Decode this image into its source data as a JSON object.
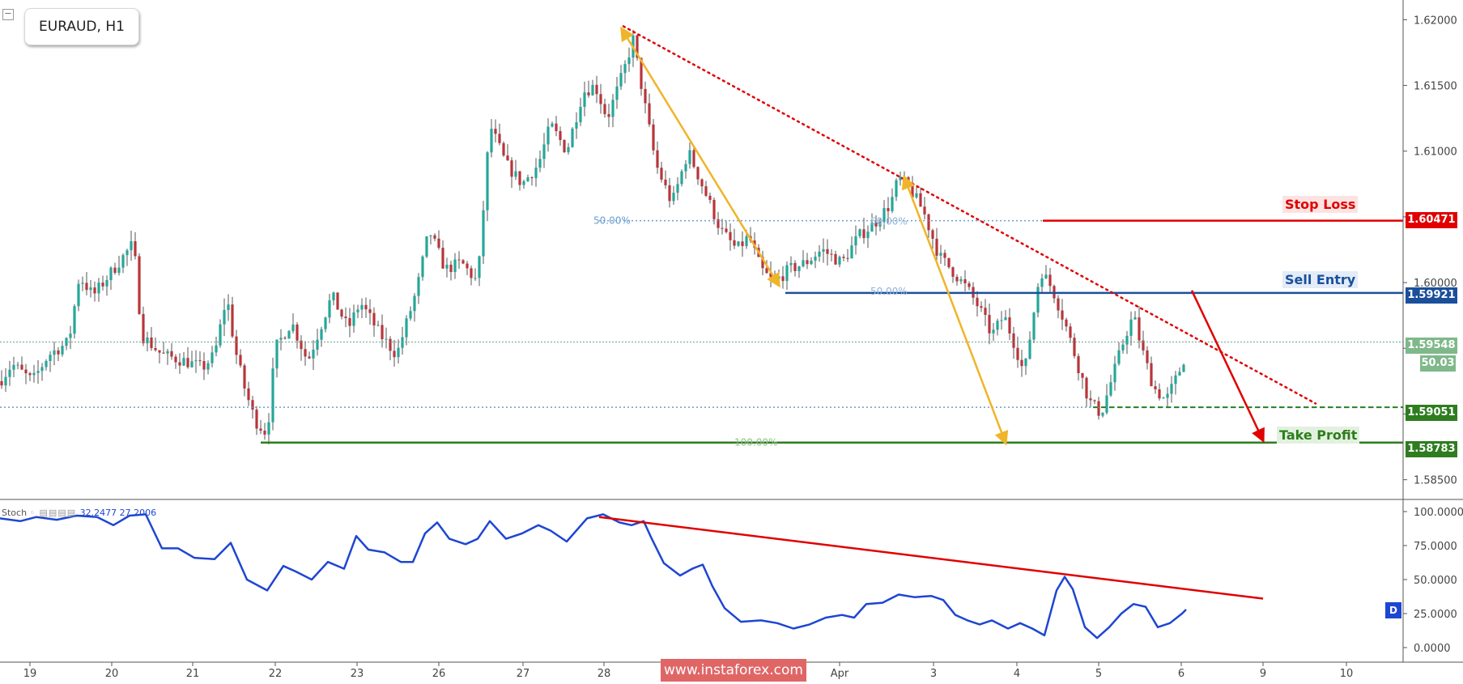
{
  "symbol": "EURAUD, H1",
  "watermark": "www.instaforex.com",
  "colors": {
    "bull": "#26a69a",
    "bear": "#b8353b",
    "stop_loss": "#e00000",
    "sell_entry": "#1b4f9c",
    "take_profit": "#2e7d1f",
    "fib": "#6a9fd0",
    "trend": "#e00000",
    "arrow": "#f0b429",
    "stoch": "#1e46d2"
  },
  "chart_data": {
    "type": "candlestick",
    "price_axis": {
      "ticks": [
        "1.62000",
        "1.61500",
        "1.61000",
        "1.60500",
        "1.60000",
        "1.59500",
        "1.59000",
        "1.58500"
      ],
      "range": [
        1.5835,
        1.6215
      ]
    },
    "time_axis": {
      "ticks": [
        "19",
        "20",
        "21",
        "22",
        "23",
        "26",
        "27",
        "28",
        "Apr",
        "3",
        "4",
        "5",
        "6",
        "9",
        "10"
      ]
    },
    "price_tags": {
      "stop_loss": "1.60471",
      "sell_entry": "1.59921",
      "current": "1.59548",
      "stoch_value": "50.03",
      "support": "1.59051",
      "take_profit": "1.58783"
    },
    "annotations": {
      "stop_loss": "Stop Loss",
      "sell_entry": "Sell Entry",
      "take_profit": "Take Profit"
    },
    "fib_labels": {
      "fib_50_a": "50.00%",
      "fib_50_b": "50.00%",
      "fib_50_c": "50.00%",
      "fib_100": "100.00%"
    },
    "stochastic": {
      "label": "Stoch",
      "k": "32.2477",
      "d": "27.2006",
      "badge": "D",
      "ticks": [
        "100.0000",
        "75.0000",
        "50.0000",
        "25.0000",
        "0.0000"
      ]
    }
  }
}
